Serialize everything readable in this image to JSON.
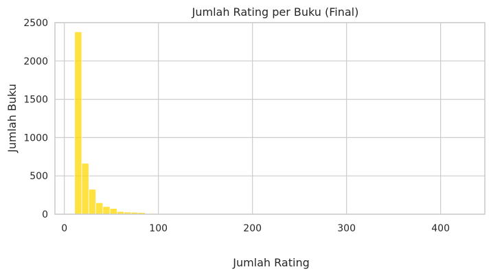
{
  "chart_data": {
    "type": "bar",
    "title": "Jumlah Rating per Buku (Final)",
    "xlabel": "Jumlah Rating",
    "ylabel": "Jumlah Buku",
    "xlim": [
      -10,
      447
    ],
    "ylim": [
      0,
      2500
    ],
    "xticks": [
      0,
      100,
      200,
      300,
      400
    ],
    "yticks": [
      0,
      500,
      1000,
      1500,
      2000,
      2500
    ],
    "grid": true,
    "bin_width": 7.5,
    "bins": [
      {
        "x0": 11,
        "x1": 18.5,
        "count": 2380
      },
      {
        "x0": 18.5,
        "x1": 26,
        "count": 665
      },
      {
        "x0": 26,
        "x1": 33.5,
        "count": 325
      },
      {
        "x0": 33.5,
        "x1": 41,
        "count": 150
      },
      {
        "x0": 41,
        "x1": 48.5,
        "count": 100
      },
      {
        "x0": 48.5,
        "x1": 56,
        "count": 75
      },
      {
        "x0": 56,
        "x1": 63.5,
        "count": 35
      },
      {
        "x0": 63.5,
        "x1": 71,
        "count": 28
      },
      {
        "x0": 71,
        "x1": 78.5,
        "count": 25
      },
      {
        "x0": 78.5,
        "x1": 86,
        "count": 22
      },
      {
        "x0": 86,
        "x1": 93.5,
        "count": 3
      },
      {
        "x0": 93.5,
        "x1": 101,
        "count": 3
      },
      {
        "x0": 101,
        "x1": 108.5,
        "count": 2
      },
      {
        "x0": 108.5,
        "x1": 116,
        "count": 2
      },
      {
        "x0": 116,
        "x1": 123.5,
        "count": 1
      },
      {
        "x0": 123.5,
        "x1": 131,
        "count": 1
      },
      {
        "x0": 131,
        "x1": 138.5,
        "count": 1
      },
      {
        "x0": 146,
        "x1": 153.5,
        "count": 1
      },
      {
        "x0": 161,
        "x1": 168.5,
        "count": 1
      },
      {
        "x0": 183.5,
        "x1": 191,
        "count": 1
      },
      {
        "x0": 213.5,
        "x1": 221,
        "count": 1
      },
      {
        "x0": 258.5,
        "x1": 266,
        "count": 1
      },
      {
        "x0": 333.5,
        "x1": 341,
        "count": 1
      },
      {
        "x0": 423.5,
        "x1": 431,
        "count": 1
      }
    ],
    "bar_color": "#FFD700",
    "grid_color": "#cccccc",
    "spine_color": "#cccccc"
  }
}
